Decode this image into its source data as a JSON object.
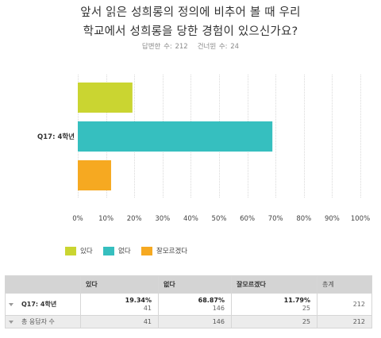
{
  "question": {
    "title_line1": "앞서 읽은 성희롱의 정의에 비추어 볼 때 우리",
    "title_line2": "학교에서 성희롱을 당한 경험이 있으신가요?",
    "answered": "답변한 수: 212",
    "skipped": "건너뛴 수: 24"
  },
  "chart_data": {
    "type": "bar",
    "orientation": "horizontal",
    "categories": [
      "Q17: 4학년"
    ],
    "series": [
      {
        "name": "있다",
        "values": [
          19.34
        ],
        "color": "#cad531"
      },
      {
        "name": "없다",
        "values": [
          68.87
        ],
        "color": "#36bfbf"
      },
      {
        "name": "잘모르겠다",
        "values": [
          11.79
        ],
        "color": "#f6a921"
      }
    ],
    "xlim": [
      0,
      100
    ],
    "x_ticks": [
      "0%",
      "10%",
      "20%",
      "30%",
      "40%",
      "50%",
      "60%",
      "70%",
      "80%",
      "90%",
      "100%"
    ],
    "grid": true,
    "legend_position": "bottom-left"
  },
  "table": {
    "headers": [
      "있다",
      "없다",
      "잘모르겠다",
      "총계"
    ],
    "rows": [
      {
        "label": "Q17: 4학년",
        "cells": [
          {
            "pct": "19.34%",
            "count": "41"
          },
          {
            "pct": "68.87%",
            "count": "146"
          },
          {
            "pct": "11.79%",
            "count": "25"
          }
        ],
        "total": "212"
      }
    ],
    "total_row": {
      "label": "총 응답자 수",
      "values": [
        "41",
        "146",
        "25",
        "212"
      ]
    }
  },
  "colors": {
    "grid": "#d9d9d9",
    "tick_text": "#444444",
    "axis_label": "#333333"
  }
}
